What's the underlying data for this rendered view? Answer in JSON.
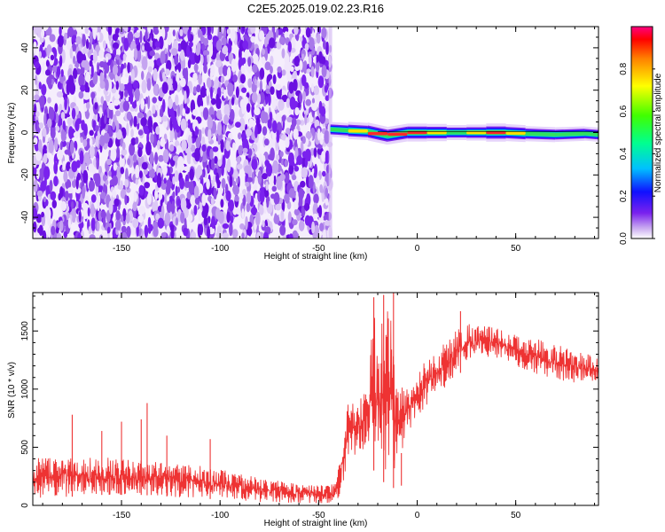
{
  "title": "C2E5.2025.019.02.23.R16",
  "colors": {
    "snr_line": "#ee3333",
    "spectrogram_noise": "#7a22ee",
    "background": "#ffffff"
  },
  "colorbar": {
    "label": "Normalized spectral amplitude",
    "range": [
      0,
      1
    ],
    "ticks": [
      {
        "v": 0.0,
        "label": "0.0"
      },
      {
        "v": 0.2,
        "label": "0.2"
      },
      {
        "v": 0.4,
        "label": "0.4"
      },
      {
        "v": 0.6,
        "label": "0.6"
      },
      {
        "v": 0.8,
        "label": "0.8"
      }
    ],
    "colormap": "hsv-rainbow (white → violet → blue → cyan → green → yellow → red → magenta)"
  },
  "chart_data": [
    {
      "type": "heatmap",
      "title": "C2E5.2025.019.02.23.R16",
      "xlabel": "Height of straight line (km)",
      "ylabel": "Frequency (Hz)",
      "xlim": [
        -195,
        92
      ],
      "ylim": [
        -50,
        50
      ],
      "xticks": [
        {
          "v": -150,
          "label": "-150"
        },
        {
          "v": -100,
          "label": "-100"
        },
        {
          "v": -50,
          "label": "-50"
        },
        {
          "v": 0,
          "label": "0"
        },
        {
          "v": 50,
          "label": "50"
        }
      ],
      "yticks": [
        {
          "v": -40,
          "label": "-40"
        },
        {
          "v": -20,
          "label": "-20"
        },
        {
          "v": 0,
          "label": "0"
        },
        {
          "v": 20,
          "label": "20"
        },
        {
          "v": 40,
          "label": "40"
        }
      ],
      "noise_region_x": [
        -195,
        -44
      ],
      "signal_line": {
        "x_start": -44,
        "x_end": 92,
        "frequency_hz": 0,
        "profile": [
          {
            "x": -44,
            "f": 1.5,
            "amp": 0.35
          },
          {
            "x": -35,
            "f": 1.0,
            "amp": 0.75
          },
          {
            "x": -25,
            "f": 0.5,
            "amp": 0.85
          },
          {
            "x": -15,
            "f": -1.5,
            "amp": 0.9
          },
          {
            "x": -5,
            "f": 0.0,
            "amp": 0.8
          },
          {
            "x": 5,
            "f": 0.0,
            "amp": 0.95
          },
          {
            "x": 15,
            "f": 0.0,
            "amp": 0.65
          },
          {
            "x": 25,
            "f": 0.0,
            "amp": 0.5
          },
          {
            "x": 35,
            "f": 0.0,
            "amp": 0.85
          },
          {
            "x": 45,
            "f": 0.0,
            "amp": 0.95
          },
          {
            "x": 55,
            "f": -0.5,
            "amp": 0.6
          },
          {
            "x": 70,
            "f": -1.0,
            "amp": 0.55
          },
          {
            "x": 85,
            "f": -0.5,
            "amp": 0.5
          },
          {
            "x": 92,
            "f": -1.0,
            "amp": 0.45
          }
        ]
      }
    },
    {
      "type": "line",
      "title": "",
      "xlabel": "Height of straight line (km)",
      "ylabel": "SNR (10 * v/v)",
      "xlim": [
        -195,
        92
      ],
      "ylim": [
        0,
        1830
      ],
      "xticks": [
        {
          "v": -150,
          "label": "-150"
        },
        {
          "v": -100,
          "label": "-100"
        },
        {
          "v": -50,
          "label": "-50"
        },
        {
          "v": 0,
          "label": "0"
        },
        {
          "v": 50,
          "label": "50"
        }
      ],
      "yticks": [
        {
          "v": 0,
          "label": "0"
        },
        {
          "v": 500,
          "label": "500"
        },
        {
          "v": 1000,
          "label": "1000"
        },
        {
          "v": 1500,
          "label": "1500"
        }
      ],
      "series": [
        {
          "envelope": {
            "x": [
              -195,
              -180,
              -160,
              -140,
              -120,
              -100,
              -80,
              -60,
              -45,
              -41,
              -38,
              -35,
              -30,
              -25,
              -22,
              -20,
              -17,
              -14,
              -12,
              -10,
              -5,
              0,
              5,
              10,
              15,
              20,
              25,
              30,
              35,
              40,
              50,
              60,
              70,
              80,
              92
            ],
            "low": [
              60,
              70,
              90,
              90,
              70,
              50,
              30,
              20,
              15,
              20,
              150,
              400,
              450,
              500,
              300,
              500,
              200,
              400,
              150,
              350,
              600,
              750,
              850,
              950,
              1000,
              1100,
              1200,
              1250,
              1280,
              1270,
              1200,
              1130,
              1080,
              1050,
              1050
            ],
            "high": [
              420,
              450,
              430,
              410,
              380,
              330,
              250,
              200,
              180,
              200,
              600,
              950,
              900,
              1050,
              1780,
              1350,
              1780,
              1830,
              1450,
              1100,
              1050,
              1150,
              1300,
              1350,
              1450,
              1550,
              1600,
              1580,
              1560,
              1540,
              1480,
              1450,
              1400,
              1350,
              1300
            ]
          },
          "spikes": [
            {
              "x": -175,
              "y": 780
            },
            {
              "x": -160,
              "y": 640
            },
            {
              "x": -150,
              "y": 720
            },
            {
              "x": -140,
              "y": 740
            },
            {
              "x": -137,
              "y": 880
            },
            {
              "x": -127,
              "y": 600
            },
            {
              "x": -105,
              "y": 570
            },
            {
              "x": -22,
              "y": 1790
            },
            {
              "x": -17,
              "y": 1810
            },
            {
              "x": -12,
              "y": 1830
            },
            {
              "x": -8,
              "y": 170
            },
            {
              "x": 22,
              "y": 1670
            }
          ]
        }
      ]
    }
  ]
}
